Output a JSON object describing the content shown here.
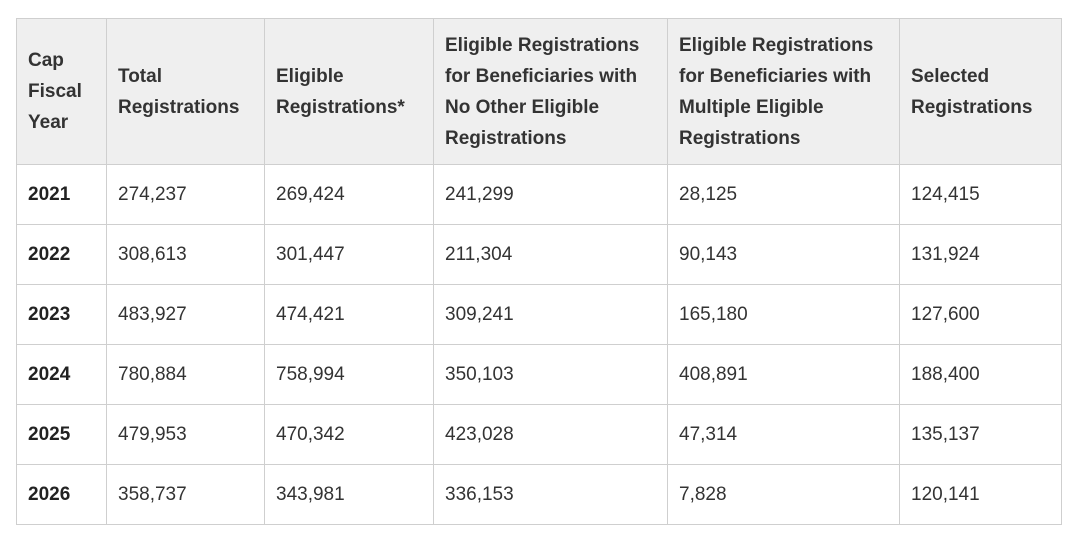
{
  "table": {
    "headers": [
      "Cap\nFiscal\nYear",
      "Total\nRegistrations",
      "Eligible\nRegistrations*",
      "Eligible Registrations\nfor Beneficiaries with\nNo Other Eligible\nRegistrations",
      "Eligible Registrations\nfor Beneficiaries with\nMultiple Eligible\nRegistrations",
      "Selected\nRegistrations"
    ],
    "rows": [
      [
        "2021",
        "274,237",
        "269,424",
        "241,299",
        "28,125",
        "124,415"
      ],
      [
        "2022",
        "308,613",
        "301,447",
        "211,304",
        "90,143",
        "131,924"
      ],
      [
        "2023",
        "483,927",
        "474,421",
        "309,241",
        "165,180",
        "127,600"
      ],
      [
        "2024",
        "780,884",
        "758,994",
        "350,103",
        "408,891",
        "188,400"
      ],
      [
        "2025",
        "479,953",
        "470,342",
        "423,028",
        "47,314",
        "135,137"
      ],
      [
        "2026",
        "358,737",
        "343,981",
        "336,153",
        "7,828",
        "120,141"
      ]
    ]
  }
}
